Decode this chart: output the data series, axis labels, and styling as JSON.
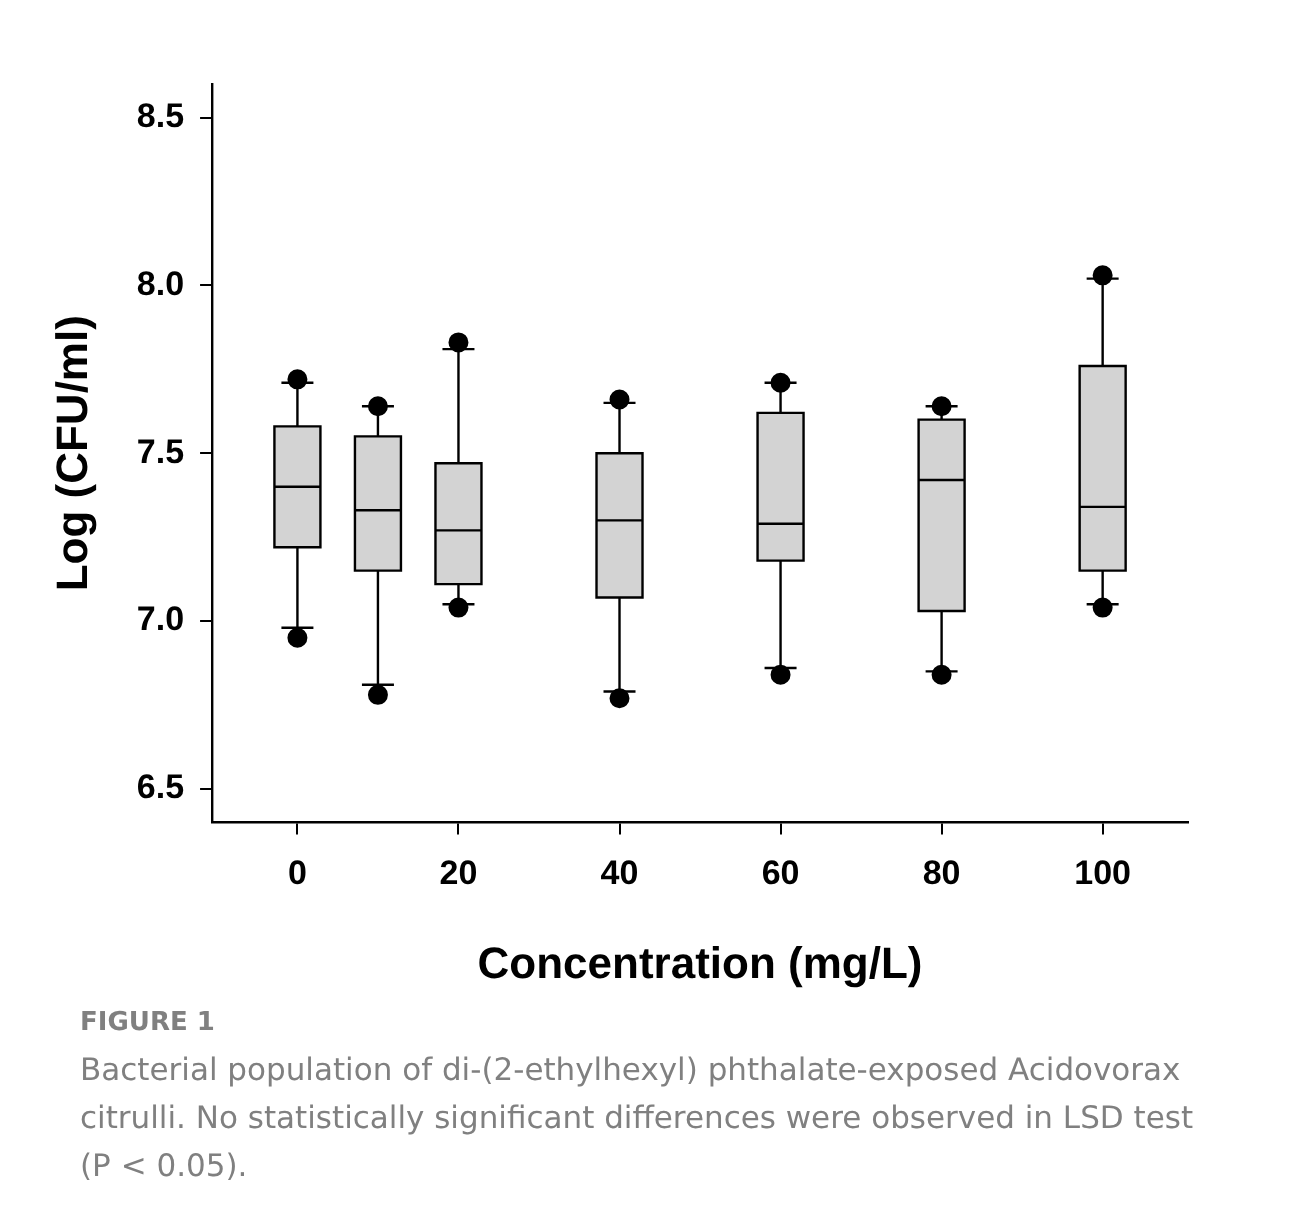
{
  "chart_data": {
    "type": "box",
    "xlabel": "Concentration (mg/L)",
    "ylabel": "Log (CFU/ml)",
    "x": [
      0,
      10,
      20,
      40,
      60,
      80,
      100
    ],
    "boxes": [
      {
        "low": 6.98,
        "q1": 7.22,
        "median": 7.4,
        "q3": 7.58,
        "high": 7.71,
        "outliers": [
          6.95,
          7.72
        ]
      },
      {
        "low": 6.81,
        "q1": 7.15,
        "median": 7.33,
        "q3": 7.55,
        "high": 7.64,
        "outliers": [
          6.78,
          7.64
        ]
      },
      {
        "low": 7.05,
        "q1": 7.11,
        "median": 7.27,
        "q3": 7.47,
        "high": 7.81,
        "outliers": [
          7.04,
          7.83
        ]
      },
      {
        "low": 6.79,
        "q1": 7.07,
        "median": 7.3,
        "q3": 7.5,
        "high": 7.65,
        "outliers": [
          6.77,
          7.66
        ]
      },
      {
        "low": 6.86,
        "q1": 7.18,
        "median": 7.29,
        "q3": 7.62,
        "high": 7.71,
        "outliers": [
          6.84,
          7.71
        ]
      },
      {
        "low": 6.85,
        "q1": 7.03,
        "median": 7.42,
        "q3": 7.6,
        "high": 7.64,
        "outliers": [
          6.84,
          7.64
        ]
      },
      {
        "low": 7.05,
        "q1": 7.15,
        "median": 7.34,
        "q3": 7.76,
        "high": 8.02,
        "outliers": [
          7.04,
          8.03
        ]
      }
    ],
    "color": "#d3d3d3",
    "marker": "circle",
    "xlim": [
      -10.6,
      110.6
    ],
    "xticks": [
      0,
      20,
      40,
      60,
      80,
      100
    ],
    "ylim": [
      6.4,
      8.6
    ],
    "yticks": [
      {
        "value": 6.5,
        "label": "6.5"
      },
      {
        "value": 7,
        "label": "7.0"
      },
      {
        "value": 7.5,
        "label": "7.5"
      },
      {
        "value": 8,
        "label": "8.0"
      },
      {
        "value": 8.5,
        "label": "8.5"
      }
    ],
    "grid": false,
    "legend": false,
    "annotations": [
      "FIGURE 1",
      "Bacterial population of di-(2-ethylhexyl) phthalate-exposed Acidovorax citrulli. No statistically significant differences were observed in LSD test (P < 0.05)."
    ]
  }
}
